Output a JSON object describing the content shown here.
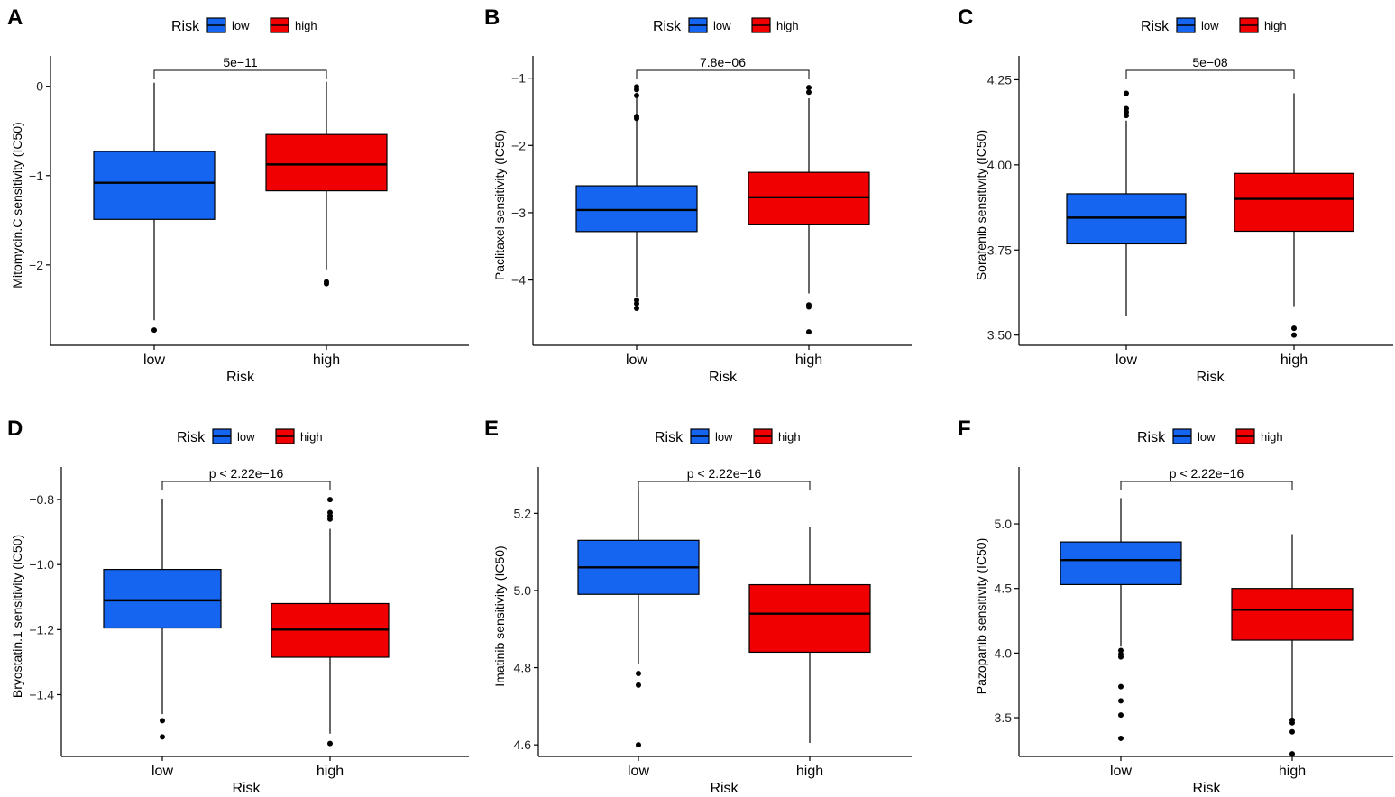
{
  "colors": {
    "low": "#1565F0",
    "high": "#F00000",
    "axis": "#000000"
  },
  "chart_data": [
    {
      "panel": "A",
      "type": "box",
      "ylabel": "Mitomycin.C sensitivity (IC50)",
      "xlabel": "Risk",
      "legend_title": "Risk",
      "legend_position": "top",
      "categories": [
        "low",
        "high"
      ],
      "yticks": [
        0,
        -1,
        -2
      ],
      "ytick_labels": [
        "0",
        "-1",
        "-2"
      ],
      "ylim": [
        -2.9,
        0.34
      ],
      "pvalue": "5e-11",
      "boxes": [
        {
          "group": "low",
          "q1": -1.49,
          "median": -1.08,
          "q3": -0.73,
          "whisker_low": -2.62,
          "whisker_high": 0.04,
          "outliers": [
            -2.73
          ]
        },
        {
          "group": "high",
          "q1": -1.17,
          "median": -0.875,
          "q3": -0.54,
          "whisker_low": -2.05,
          "whisker_high": 0.05,
          "outliers": [
            -2.19,
            -2.21
          ]
        }
      ]
    },
    {
      "panel": "B",
      "type": "box",
      "ylabel": "Paclitaxel sensitivity (IC50)",
      "xlabel": "Risk",
      "legend_title": "Risk",
      "legend_position": "top",
      "categories": [
        "low",
        "high"
      ],
      "yticks": [
        -1,
        -2,
        -3,
        -4
      ],
      "ytick_labels": [
        "-1",
        "-2",
        "-3",
        "-4"
      ],
      "ylim": [
        -4.97,
        -0.67
      ],
      "pvalue": "7.8e-06",
      "boxes": [
        {
          "group": "low",
          "q1": -3.28,
          "median": -2.96,
          "q3": -2.6,
          "whisker_low": -4.25,
          "whisker_high": -1.3,
          "outliers": [
            -1.13,
            -1.17,
            -1.26,
            -1.57,
            -1.6,
            -4.3,
            -4.35,
            -4.42
          ]
        },
        {
          "group": "high",
          "q1": -3.18,
          "median": -2.77,
          "q3": -2.4,
          "whisker_low": -4.2,
          "whisker_high": -1.3,
          "outliers": [
            -1.14,
            -1.21,
            -4.37,
            -4.4,
            -4.77
          ]
        }
      ]
    },
    {
      "panel": "C",
      "type": "box",
      "ylabel": "Sorafenib sensitivity (IC50)",
      "xlabel": "Risk",
      "legend_title": "Risk",
      "legend_position": "top",
      "categories": [
        "low",
        "high"
      ],
      "yticks": [
        4.25,
        4.0,
        3.75,
        3.5
      ],
      "ytick_labels": [
        "4.25",
        "4.00",
        "3.75",
        "3.50"
      ],
      "ylim": [
        3.47,
        4.32
      ],
      "pvalue": "5e-08",
      "boxes": [
        {
          "group": "low",
          "q1": 3.768,
          "median": 3.845,
          "q3": 3.915,
          "whisker_low": 3.555,
          "whisker_high": 4.13,
          "outliers": [
            4.21,
            4.165,
            4.155,
            4.145
          ]
        },
        {
          "group": "high",
          "q1": 3.805,
          "median": 3.9,
          "q3": 3.975,
          "whisker_low": 3.585,
          "whisker_high": 4.21,
          "outliers": [
            3.52,
            3.5
          ]
        }
      ]
    },
    {
      "panel": "D",
      "type": "box",
      "ylabel": "Bryostatin.1 sensitivity (IC50)",
      "xlabel": "Risk",
      "legend_title": "Risk",
      "legend_position": "top",
      "categories": [
        "low",
        "high"
      ],
      "yticks": [
        -0.8,
        -1.0,
        -1.2,
        -1.4
      ],
      "ytick_labels": [
        "-0.8",
        "-1.0",
        "-1.2",
        "-1.4"
      ],
      "ylim": [
        -1.59,
        -0.7
      ],
      "pvalue": "p < 2.22e-16",
      "boxes": [
        {
          "group": "low",
          "q1": -1.195,
          "median": -1.11,
          "q3": -1.015,
          "whisker_low": -1.46,
          "whisker_high": -0.8,
          "outliers": [
            -1.48,
            -1.53
          ]
        },
        {
          "group": "high",
          "q1": -1.285,
          "median": -1.2,
          "q3": -1.12,
          "whisker_low": -1.52,
          "whisker_high": -0.89,
          "outliers": [
            -0.8,
            -0.84,
            -0.85,
            -0.86,
            -1.55
          ]
        }
      ]
    },
    {
      "panel": "E",
      "type": "box",
      "ylabel": "Imatinib sensitivity (IC50)",
      "xlabel": "Risk",
      "legend_title": "Risk",
      "legend_position": "top",
      "categories": [
        "low",
        "high"
      ],
      "yticks": [
        5.2,
        5.0,
        4.8,
        4.6
      ],
      "ytick_labels": [
        "5.2",
        "5.0",
        "4.8",
        "4.6"
      ],
      "ylim": [
        4.57,
        5.32
      ],
      "pvalue": "p < 2.22e-16",
      "boxes": [
        {
          "group": "low",
          "q1": 4.99,
          "median": 5.06,
          "q3": 5.13,
          "whisker_low": 4.81,
          "whisker_high": 5.26,
          "outliers": [
            4.785,
            4.755,
            4.6
          ]
        },
        {
          "group": "high",
          "q1": 4.84,
          "median": 4.94,
          "q3": 5.015,
          "whisker_low": 4.605,
          "whisker_high": 5.165,
          "outliers": []
        }
      ]
    },
    {
      "panel": "F",
      "type": "box",
      "ylabel": "Pazopanib sensitivity (IC50)",
      "xlabel": "Risk",
      "legend_title": "Risk",
      "legend_position": "top",
      "categories": [
        "low",
        "high"
      ],
      "yticks": [
        5.0,
        4.5,
        4.0,
        3.5
      ],
      "ytick_labels": [
        "5.0",
        "4.5",
        "4.0",
        "3.5"
      ],
      "ylim": [
        3.2,
        5.44
      ],
      "pvalue": "p < 2.22e-16",
      "boxes": [
        {
          "group": "low",
          "q1": 4.53,
          "median": 4.72,
          "q3": 4.86,
          "whisker_low": 4.05,
          "whisker_high": 5.2,
          "outliers": [
            4.02,
            3.99,
            3.97,
            3.74,
            3.63,
            3.52,
            3.34
          ]
        },
        {
          "group": "high",
          "q1": 4.1,
          "median": 4.335,
          "q3": 4.5,
          "whisker_low": 3.5,
          "whisker_high": 4.92,
          "outliers": [
            3.48,
            3.46,
            3.39,
            3.22
          ]
        }
      ]
    }
  ]
}
